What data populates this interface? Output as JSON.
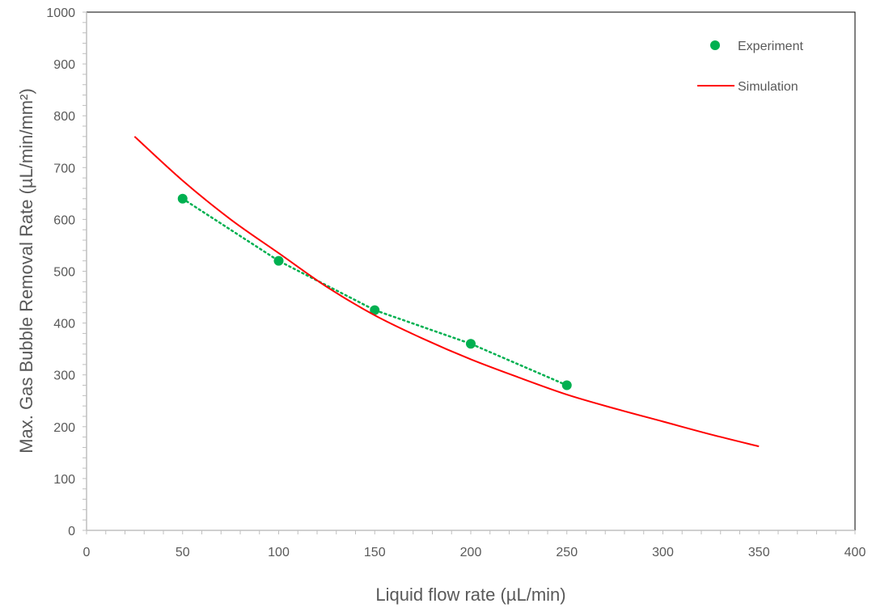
{
  "chart_data": {
    "type": "scatter",
    "title": "",
    "xlabel": "Liquid flow rate (µL/min)",
    "ylabel": "Max. Gas Bubble Removal Rate (µL/min/mm²)",
    "xlim": [
      0,
      400
    ],
    "ylim": [
      0,
      1000
    ],
    "x_ticks": [
      0,
      50,
      100,
      150,
      200,
      250,
      300,
      350,
      400
    ],
    "y_ticks": [
      0,
      100,
      200,
      300,
      400,
      500,
      600,
      700,
      800,
      900,
      1000
    ],
    "grid": false,
    "legend_position": "top-right",
    "series": [
      {
        "name": "Experiment",
        "kind": "scatter",
        "color": "#00b050",
        "trendline": "dotted",
        "x": [
          50,
          100,
          150,
          200,
          250
        ],
        "y": [
          640,
          520,
          425,
          360,
          280
        ]
      },
      {
        "name": "Simulation",
        "kind": "line",
        "color": "#ff0000",
        "x": [
          25,
          50,
          75,
          100,
          125,
          150,
          175,
          200,
          225,
          250,
          275,
          300,
          325,
          350
        ],
        "y": [
          760,
          675,
          600,
          535,
          470,
          415,
          370,
          330,
          295,
          262,
          235,
          210,
          185,
          162
        ]
      }
    ]
  }
}
